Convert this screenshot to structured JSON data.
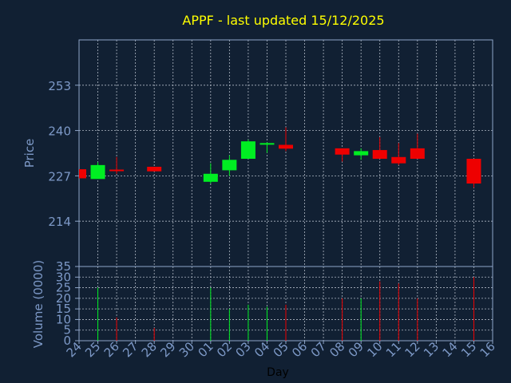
{
  "chart_data": {
    "type": "candlestick",
    "title": "APPF - last updated 15/12/2025",
    "xlabel": "Day",
    "price_panel": {
      "ylabel": "Price",
      "ylim": [
        201,
        266
      ],
      "yticks": [
        214,
        227,
        240,
        253
      ],
      "grid": true
    },
    "volume_panel": {
      "ylabel": "Volume (0000)",
      "ylim": [
        0,
        35
      ],
      "yticks": [
        0,
        5,
        10,
        15,
        20,
        25,
        30,
        35
      ],
      "grid": true
    },
    "x_ticks": [
      "24",
      "25",
      "26",
      "27",
      "28",
      "29",
      "30",
      "01",
      "02",
      "03",
      "04",
      "05",
      "06",
      "07",
      "08",
      "09",
      "10",
      "11",
      "12",
      "13",
      "14",
      "15",
      "16"
    ],
    "candles": [
      {
        "day": "24",
        "open": 228.9,
        "close": 226.3,
        "high": 228.9,
        "low": 226.3,
        "volume": 0
      },
      {
        "day": "25",
        "open": 226.1,
        "close": 230.1,
        "high": 230.9,
        "low": 226.1,
        "volume": 25
      },
      {
        "day": "26",
        "open": 228.8,
        "close": 228.6,
        "high": 232.4,
        "low": 227.6,
        "volume": 11
      },
      {
        "day": "28",
        "open": 229.6,
        "close": 228.3,
        "high": 229.6,
        "low": 228.3,
        "volume": 6
      },
      {
        "day": "01",
        "open": 225.3,
        "close": 227.6,
        "high": 230.6,
        "low": 224.8,
        "volume": 25
      },
      {
        "day": "02",
        "open": 228.6,
        "close": 231.6,
        "high": 232.9,
        "low": 227.0,
        "volume": 15
      },
      {
        "day": "03",
        "open": 231.9,
        "close": 236.9,
        "high": 237.4,
        "low": 231.9,
        "volume": 17
      },
      {
        "day": "04",
        "open": 236.1,
        "close": 236.4,
        "high": 236.6,
        "low": 233.6,
        "volume": 16
      },
      {
        "day": "05",
        "open": 235.9,
        "close": 234.8,
        "high": 240.9,
        "low": 234.1,
        "volume": 17
      },
      {
        "day": "08",
        "open": 234.9,
        "close": 233.1,
        "high": 234.9,
        "low": 231.1,
        "volume": 20
      },
      {
        "day": "09",
        "open": 232.9,
        "close": 234.1,
        "high": 234.9,
        "low": 231.6,
        "volume": 20
      },
      {
        "day": "10",
        "open": 234.4,
        "close": 231.9,
        "high": 238.1,
        "low": 231.9,
        "volume": 28
      },
      {
        "day": "11",
        "open": 232.4,
        "close": 230.6,
        "high": 236.4,
        "low": 230.1,
        "volume": 27
      },
      {
        "day": "12",
        "open": 234.9,
        "close": 231.9,
        "high": 239.1,
        "low": 231.9,
        "volume": 20
      },
      {
        "day": "15",
        "open": 231.9,
        "close": 224.8,
        "high": 231.9,
        "low": 223.6,
        "volume": 30
      }
    ]
  },
  "colors": {
    "background": "#112033",
    "title": "#ffff00",
    "axis_text": "#7d99c7",
    "axis_line": "#8fa6c9",
    "grid": "#b0b8c4",
    "up": "#00ee22",
    "down": "#ee0000",
    "xlabel": "#000000"
  }
}
